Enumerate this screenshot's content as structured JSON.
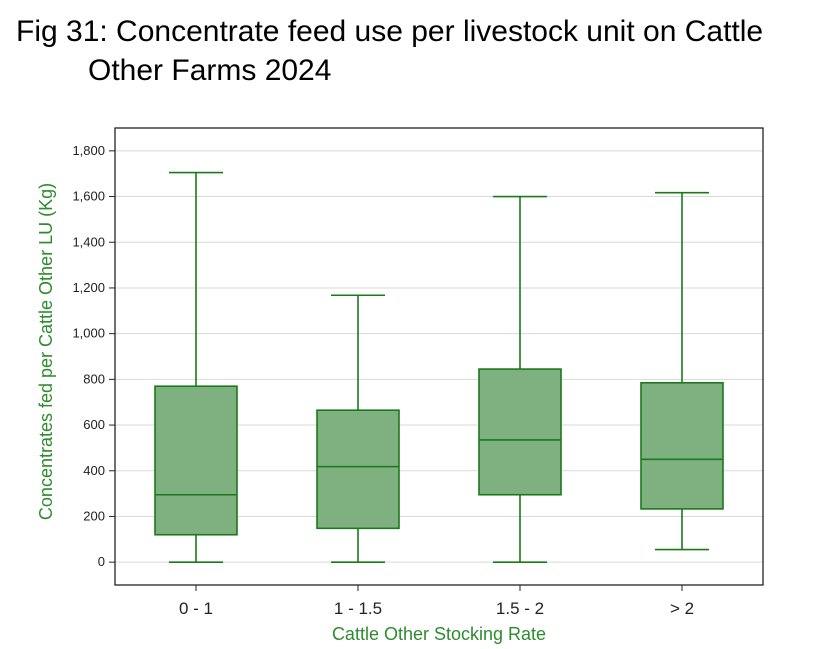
{
  "chart_data": {
    "type": "boxplot",
    "title": "Fig 31: Concentrate feed use per livestock unit on Cattle Other Farms 2024",
    "title_line1": "Fig 31: Concentrate feed use per livestock unit on Cattle",
    "title_line2": "Other Farms 2024",
    "xlabel": "Cattle Other Stocking Rate",
    "ylabel": "Concentrates fed per Cattle Other LU (Kg)",
    "ylim": [
      -100,
      1900
    ],
    "yticks": [
      0,
      200,
      400,
      600,
      800,
      1000,
      1200,
      1400,
      1600,
      1800
    ],
    "ytick_labels": [
      "0",
      "200",
      "400",
      "600",
      "800",
      "1,000",
      "1,200",
      "1,400",
      "1,600",
      "1,800"
    ],
    "categories": [
      "0 - 1",
      "1 - 1.5",
      "1.5 - 2",
      "> 2"
    ],
    "boxes": [
      {
        "min": 0,
        "q1": 120,
        "median": 295,
        "q3": 770,
        "max": 1705
      },
      {
        "min": 0,
        "q1": 148,
        "median": 418,
        "q3": 665,
        "max": 1168
      },
      {
        "min": 0,
        "q1": 295,
        "median": 535,
        "q3": 845,
        "max": 1600
      },
      {
        "min": 55,
        "q1": 233,
        "median": 450,
        "q3": 785,
        "max": 1617
      }
    ],
    "grid": true,
    "colors": {
      "fill": "#7fb07f",
      "stroke": "#1a7a1a",
      "axis_title": "#2e8b2e",
      "grid": "#d9d9d9"
    }
  }
}
